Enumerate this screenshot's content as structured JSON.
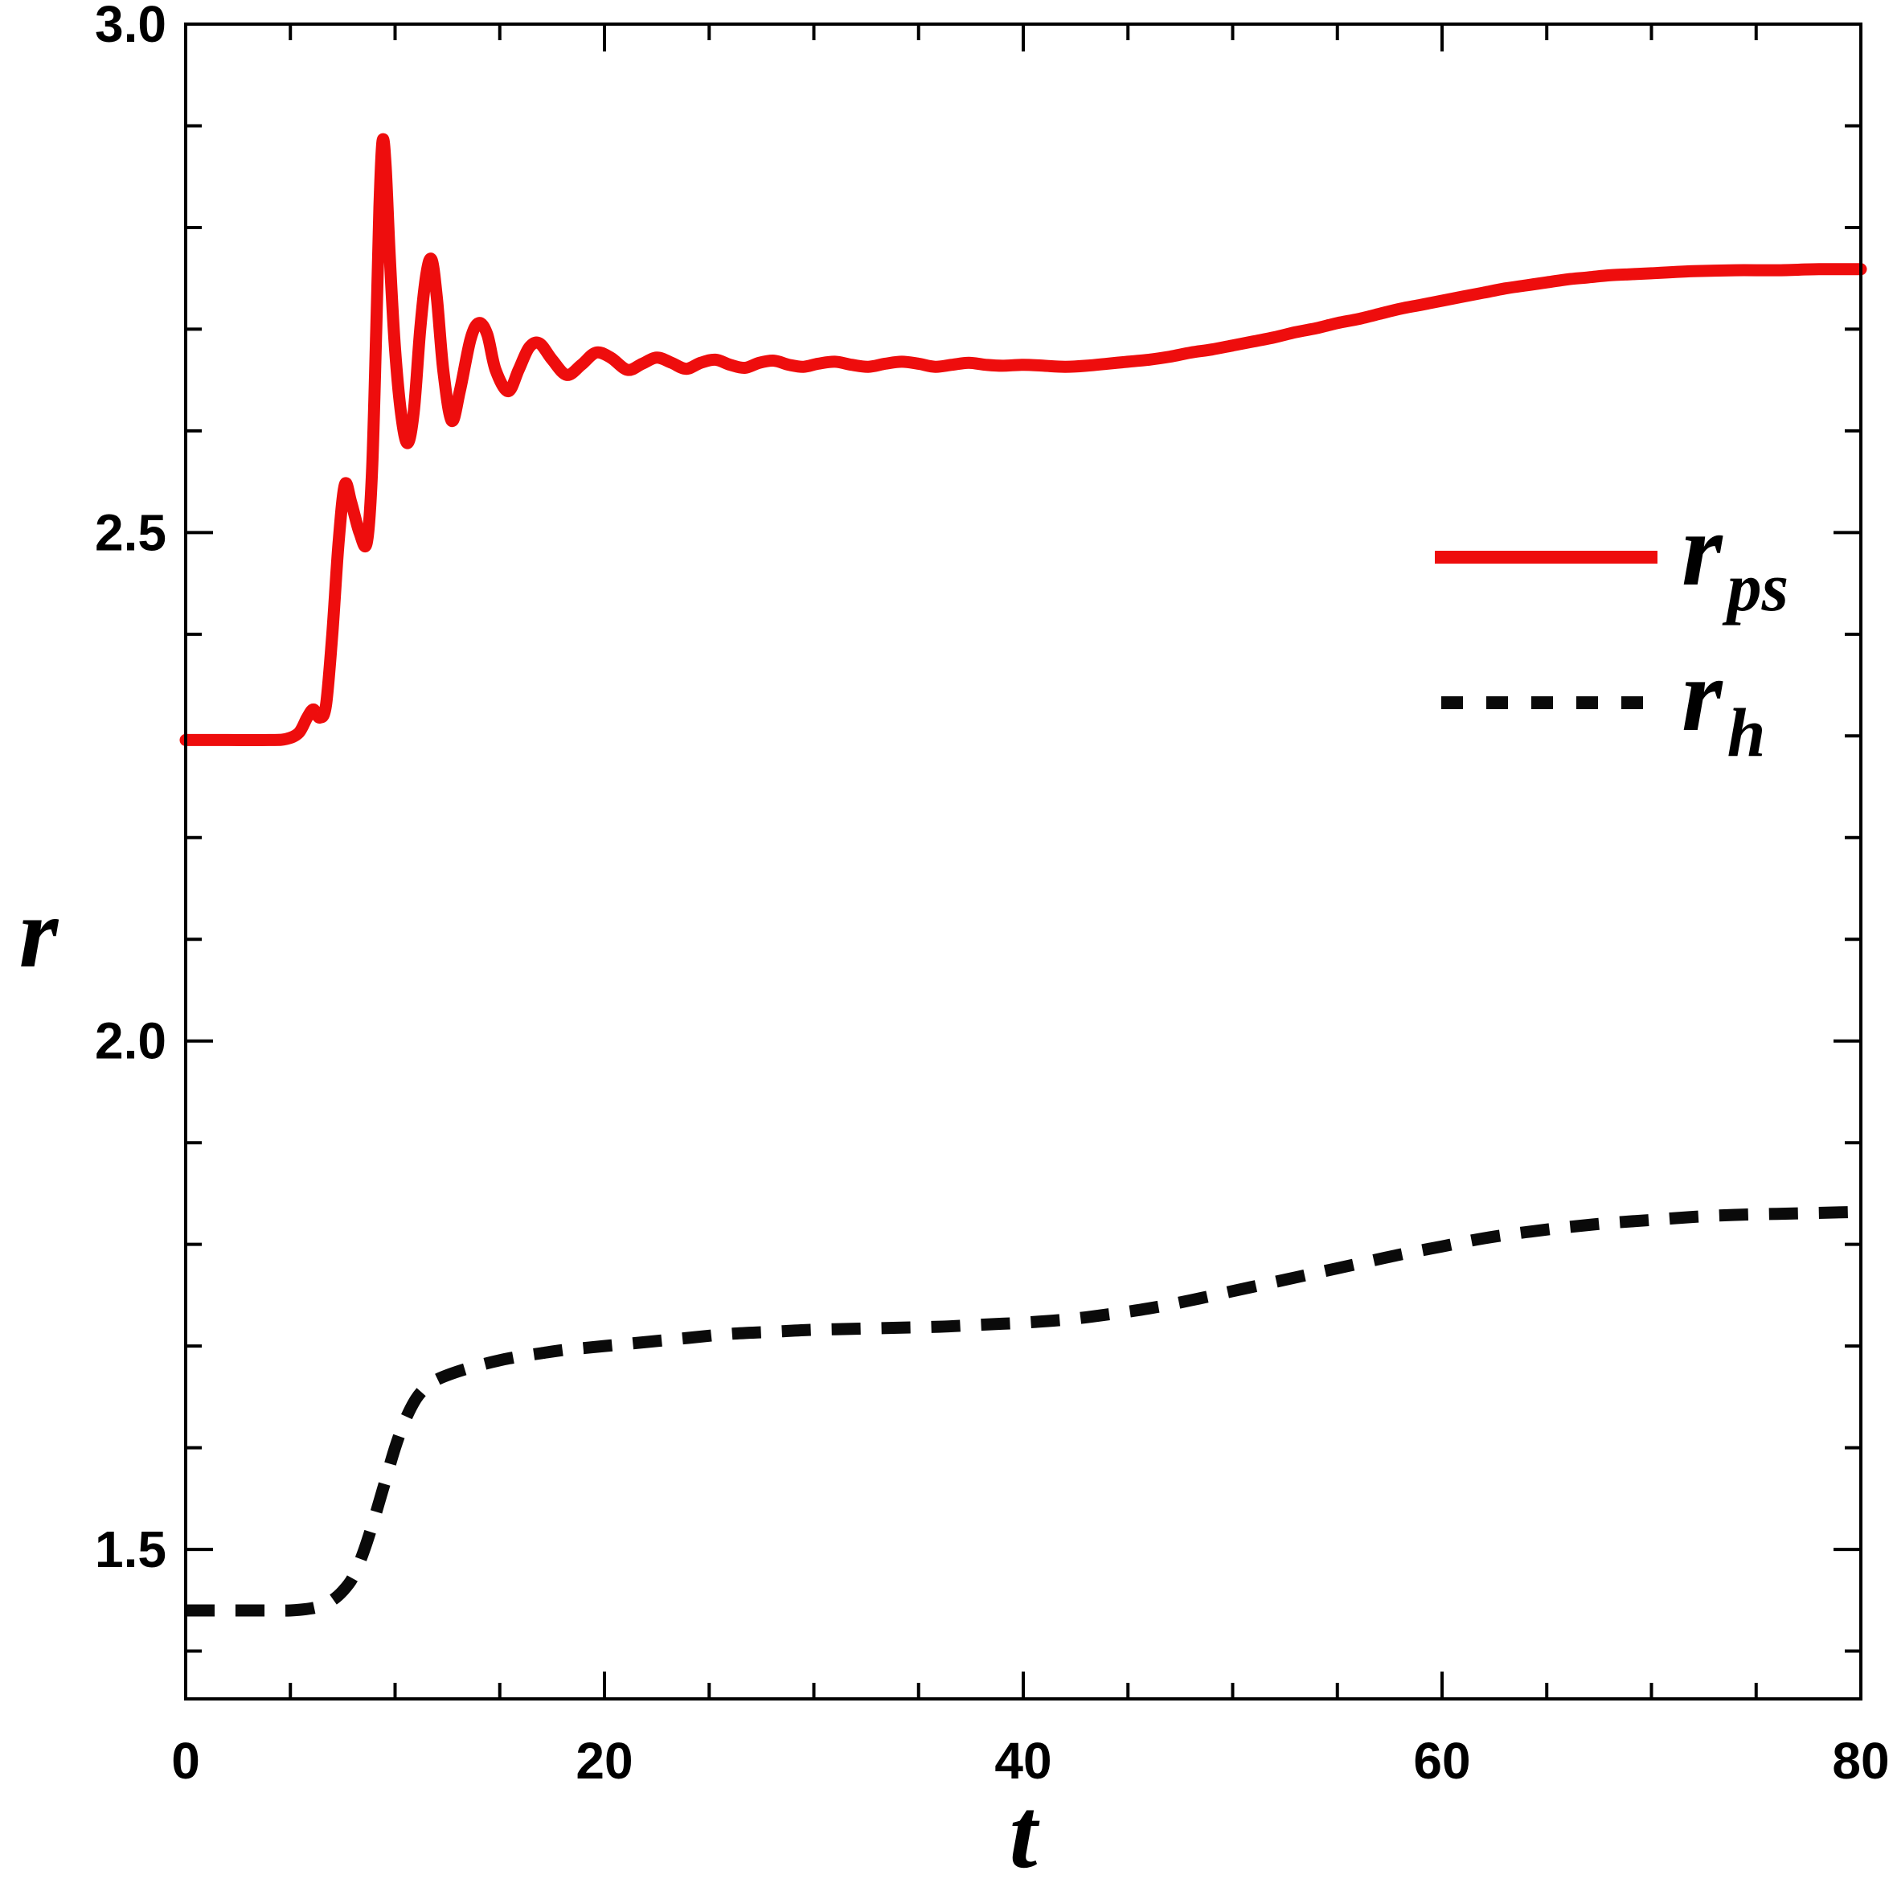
{
  "chart_data": {
    "type": "line",
    "title": "",
    "xlabel": "t",
    "ylabel": "r",
    "xlim": [
      0,
      80
    ],
    "ylim": [
      1.353,
      3.0
    ],
    "grid": false,
    "legend_position": "right-upper-inside",
    "frame_color": "#000000",
    "background": "#ffffff",
    "xticks": {
      "values": [
        0,
        20,
        40,
        60,
        80
      ],
      "labels": [
        "0",
        "20",
        "40",
        "60",
        "80"
      ],
      "minor_step": 5
    },
    "yticks": {
      "values": [
        1.5,
        2.0,
        2.5,
        3.0
      ],
      "labels": [
        "1.5",
        "2.0",
        "2.5",
        "3.0"
      ],
      "minor_step": 0.1
    },
    "series": [
      {
        "name": "r_ps",
        "label_base": "r",
        "label_sub": "ps",
        "color": "#ee0d0d",
        "style": "solid",
        "points": [
          [
            0,
            2.296
          ],
          [
            2,
            2.296
          ],
          [
            4,
            2.296
          ],
          [
            4.8,
            2.297
          ],
          [
            5.4,
            2.303
          ],
          [
            5.8,
            2.318
          ],
          [
            6.1,
            2.326
          ],
          [
            6.4,
            2.318
          ],
          [
            6.7,
            2.33
          ],
          [
            7.0,
            2.4
          ],
          [
            7.3,
            2.49
          ],
          [
            7.6,
            2.547
          ],
          [
            7.9,
            2.53
          ],
          [
            8.3,
            2.5
          ],
          [
            8.65,
            2.49
          ],
          [
            8.9,
            2.56
          ],
          [
            9.1,
            2.7
          ],
          [
            9.25,
            2.82
          ],
          [
            9.4,
            2.885
          ],
          [
            9.55,
            2.86
          ],
          [
            9.75,
            2.77
          ],
          [
            10.0,
            2.68
          ],
          [
            10.3,
            2.615
          ],
          [
            10.6,
            2.588
          ],
          [
            10.9,
            2.62
          ],
          [
            11.2,
            2.7
          ],
          [
            11.5,
            2.755
          ],
          [
            11.75,
            2.768
          ],
          [
            12.0,
            2.73
          ],
          [
            12.3,
            2.66
          ],
          [
            12.7,
            2.61
          ],
          [
            13.1,
            2.64
          ],
          [
            13.6,
            2.69
          ],
          [
            14.0,
            2.706
          ],
          [
            14.4,
            2.695
          ],
          [
            14.8,
            2.66
          ],
          [
            15.4,
            2.639
          ],
          [
            15.9,
            2.66
          ],
          [
            16.4,
            2.682
          ],
          [
            16.9,
            2.686
          ],
          [
            17.5,
            2.67
          ],
          [
            18.2,
            2.655
          ],
          [
            18.9,
            2.665
          ],
          [
            19.6,
            2.677
          ],
          [
            20.3,
            2.672
          ],
          [
            21.1,
            2.66
          ],
          [
            21.8,
            2.666
          ],
          [
            22.5,
            2.672
          ],
          [
            23.2,
            2.667
          ],
          [
            23.9,
            2.661
          ],
          [
            24.6,
            2.667
          ],
          [
            25.3,
            2.67
          ],
          [
            26.0,
            2.665
          ],
          [
            26.7,
            2.662
          ],
          [
            27.4,
            2.667
          ],
          [
            28.1,
            2.669
          ],
          [
            28.8,
            2.665
          ],
          [
            29.5,
            2.663
          ],
          [
            30.2,
            2.666
          ],
          [
            31.0,
            2.668
          ],
          [
            31.8,
            2.665
          ],
          [
            32.6,
            2.663
          ],
          [
            33.4,
            2.666
          ],
          [
            34.2,
            2.668
          ],
          [
            35.0,
            2.666
          ],
          [
            35.8,
            2.663
          ],
          [
            36.6,
            2.665
          ],
          [
            37.4,
            2.667
          ],
          [
            38.2,
            2.665
          ],
          [
            39.0,
            2.664
          ],
          [
            40.0,
            2.665
          ],
          [
            41,
            2.664
          ],
          [
            42,
            2.663
          ],
          [
            43,
            2.664
          ],
          [
            44,
            2.666
          ],
          [
            45,
            2.668
          ],
          [
            46,
            2.67
          ],
          [
            47,
            2.673
          ],
          [
            48,
            2.677
          ],
          [
            49,
            2.68
          ],
          [
            50,
            2.684
          ],
          [
            51,
            2.688
          ],
          [
            52,
            2.692
          ],
          [
            53,
            2.697
          ],
          [
            54,
            2.701
          ],
          [
            55,
            2.706
          ],
          [
            56,
            2.71
          ],
          [
            57,
            2.715
          ],
          [
            58,
            2.72
          ],
          [
            59,
            2.724
          ],
          [
            60,
            2.728
          ],
          [
            61,
            2.732
          ],
          [
            62,
            2.736
          ],
          [
            63,
            2.74
          ],
          [
            64,
            2.743
          ],
          [
            65,
            2.746
          ],
          [
            66,
            2.749
          ],
          [
            67,
            2.751
          ],
          [
            68,
            2.753
          ],
          [
            69,
            2.754
          ],
          [
            70,
            2.755
          ],
          [
            72,
            2.757
          ],
          [
            74,
            2.758
          ],
          [
            76,
            2.758
          ],
          [
            78,
            2.759
          ],
          [
            80,
            2.759
          ]
        ]
      },
      {
        "name": "r_h",
        "label_base": "r",
        "label_sub": "h",
        "color": "#0a0a0a",
        "style": "dashed",
        "points": [
          [
            0,
            1.44
          ],
          [
            2,
            1.44
          ],
          [
            4,
            1.44
          ],
          [
            5,
            1.44
          ],
          [
            6,
            1.442
          ],
          [
            6.5,
            1.445
          ],
          [
            7,
            1.45
          ],
          [
            7.5,
            1.459
          ],
          [
            8,
            1.473
          ],
          [
            8.5,
            1.498
          ],
          [
            9,
            1.53
          ],
          [
            9.5,
            1.565
          ],
          [
            10,
            1.6
          ],
          [
            10.5,
            1.628
          ],
          [
            11,
            1.648
          ],
          [
            11.5,
            1.66
          ],
          [
            12,
            1.667
          ],
          [
            13,
            1.675
          ],
          [
            14,
            1.681
          ],
          [
            15,
            1.686
          ],
          [
            16,
            1.69
          ],
          [
            17,
            1.693
          ],
          [
            18,
            1.696
          ],
          [
            19,
            1.698
          ],
          [
            20,
            1.7
          ],
          [
            22,
            1.704
          ],
          [
            24,
            1.708
          ],
          [
            26,
            1.712
          ],
          [
            28,
            1.714
          ],
          [
            30,
            1.716
          ],
          [
            32,
            1.717
          ],
          [
            34,
            1.718
          ],
          [
            36,
            1.719
          ],
          [
            38,
            1.721
          ],
          [
            40,
            1.723
          ],
          [
            42,
            1.726
          ],
          [
            44,
            1.731
          ],
          [
            46,
            1.737
          ],
          [
            48,
            1.745
          ],
          [
            50,
            1.754
          ],
          [
            52,
            1.763
          ],
          [
            54,
            1.772
          ],
          [
            56,
            1.781
          ],
          [
            58,
            1.79
          ],
          [
            60,
            1.798
          ],
          [
            62,
            1.806
          ],
          [
            64,
            1.812
          ],
          [
            66,
            1.817
          ],
          [
            68,
            1.821
          ],
          [
            70,
            1.824
          ],
          [
            72,
            1.827
          ],
          [
            74,
            1.829
          ],
          [
            76,
            1.83
          ],
          [
            78,
            1.831
          ],
          [
            80,
            1.832
          ]
        ]
      }
    ]
  }
}
